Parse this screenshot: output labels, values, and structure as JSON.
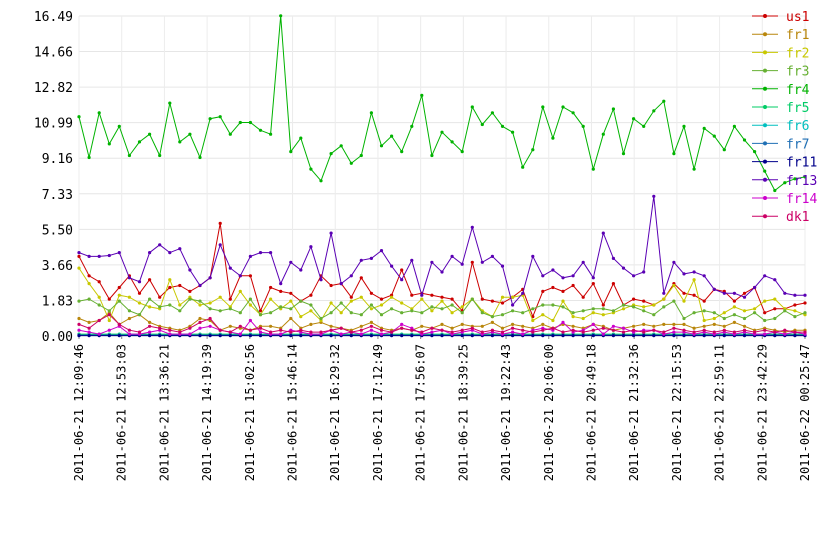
{
  "chart_data": {
    "type": "line",
    "title": "",
    "xlabel": "",
    "ylabel": "",
    "ylim": [
      0,
      16.49
    ],
    "yticks": [
      "0.00",
      "1.83",
      "3.66",
      "5.50",
      "7.33",
      "9.16",
      "10.99",
      "12.82",
      "14.66",
      "16.49"
    ],
    "xticks": [
      "2011-06-21 12:09:46",
      "2011-06-21 12:53:03",
      "2011-06-21 13:36:21",
      "2011-06-21 14:19:39",
      "2011-06-21 15:02:56",
      "2011-06-21 15:46:14",
      "2011-06-21 16:29:32",
      "2011-06-21 17:12:49",
      "2011-06-21 17:56:07",
      "2011-06-21 18:39:25",
      "2011-06-21 19:22:43",
      "2011-06-21 20:06:00",
      "2011-06-21 20:49:18",
      "2011-06-21 21:32:36",
      "2011-06-21 22:15:53",
      "2011-06-21 22:59:11",
      "2011-06-21 23:42:29",
      "2011-06-22 00:25:47"
    ],
    "legend_position": "right",
    "grid": true,
    "series": [
      {
        "name": "us1",
        "color": "#cc0000",
        "values": [
          4.1,
          3.1,
          2.8,
          1.9,
          2.5,
          3.1,
          2.2,
          2.9,
          2.0,
          2.5,
          2.6,
          2.3,
          2.6,
          3.0,
          5.8,
          1.9,
          3.1,
          3.1,
          1.3,
          2.5,
          2.3,
          2.2,
          1.8,
          2.1,
          3.1,
          2.6,
          2.7,
          2.0,
          3.0,
          2.2,
          1.9,
          2.1,
          3.4,
          2.1,
          2.2,
          2.1,
          2.0,
          1.9,
          1.3,
          3.8,
          1.9,
          1.8,
          1.7,
          2.0,
          2.4,
          1.0,
          2.3,
          2.5,
          2.3,
          2.6,
          2.0,
          2.7,
          1.6,
          2.7,
          1.6,
          1.9,
          1.8,
          1.6,
          1.9,
          2.7,
          2.2,
          2.1,
          1.8,
          2.4,
          2.3,
          1.8,
          2.2,
          2.5,
          1.2,
          1.4,
          1.4,
          1.6,
          1.7
        ]
      },
      {
        "name": "fr1",
        "color": "#b8860b",
        "values": [
          0.9,
          0.7,
          0.8,
          1.2,
          0.6,
          0.9,
          1.1,
          0.7,
          0.5,
          0.4,
          0.3,
          0.5,
          0.9,
          0.8,
          0.3,
          0.5,
          0.4,
          0.3,
          0.5,
          0.5,
          0.4,
          0.9,
          0.4,
          0.6,
          0.7,
          0.5,
          0.4,
          0.3,
          0.5,
          0.7,
          0.4,
          0.3,
          0.4,
          0.3,
          0.5,
          0.4,
          0.6,
          0.4,
          0.6,
          0.5,
          0.5,
          0.7,
          0.4,
          0.6,
          0.5,
          0.4,
          0.6,
          0.4,
          0.6,
          0.5,
          0.4,
          0.6,
          0.5,
          0.3,
          0.4,
          0.5,
          0.6,
          0.5,
          0.6,
          0.6,
          0.6,
          0.4,
          0.5,
          0.6,
          0.5,
          0.7,
          0.5,
          0.3,
          0.4,
          0.3,
          0.2,
          0.3,
          0.3
        ]
      },
      {
        "name": "fr2",
        "color": "#c8c800",
        "values": [
          3.5,
          2.7,
          2.0,
          0.8,
          2.1,
          2.0,
          1.7,
          1.5,
          1.4,
          2.9,
          1.6,
          2.0,
          1.6,
          1.7,
          2.0,
          1.5,
          2.3,
          1.6,
          1.1,
          1.9,
          1.4,
          1.8,
          1.0,
          1.3,
          0.8,
          1.7,
          1.2,
          1.8,
          2.0,
          1.4,
          1.6,
          2.0,
          1.7,
          1.4,
          1.9,
          1.3,
          1.8,
          1.2,
          1.5,
          1.9,
          1.3,
          1.0,
          2.0,
          2.0,
          2.1,
          0.8,
          1.1,
          0.8,
          1.8,
          1.0,
          0.9,
          1.2,
          1.1,
          1.2,
          1.4,
          1.6,
          1.5,
          1.6,
          1.9,
          2.6,
          1.8,
          2.9,
          0.8,
          0.9,
          1.2,
          1.5,
          1.3,
          1.4,
          1.8,
          1.9,
          1.4,
          1.3,
          1.1
        ]
      },
      {
        "name": "fr3",
        "color": "#66b032",
        "values": [
          1.8,
          1.9,
          1.6,
          1.3,
          1.8,
          1.3,
          1.1,
          1.9,
          1.5,
          1.6,
          1.3,
          1.9,
          1.8,
          1.4,
          1.3,
          1.4,
          1.2,
          1.9,
          1.1,
          1.2,
          1.5,
          1.4,
          1.8,
          1.6,
          0.9,
          1.2,
          1.7,
          1.2,
          1.1,
          1.6,
          1.1,
          1.4,
          1.2,
          1.3,
          1.2,
          1.5,
          1.4,
          1.6,
          1.2,
          1.9,
          1.2,
          1.0,
          1.1,
          1.3,
          1.2,
          1.4,
          1.6,
          1.6,
          1.5,
          1.2,
          1.3,
          1.4,
          1.4,
          1.3,
          1.6,
          1.5,
          1.3,
          1.1,
          1.5,
          1.8,
          0.9,
          1.2,
          1.3,
          1.2,
          0.9,
          1.1,
          0.9,
          1.2,
          0.8,
          0.9,
          1.3,
          1.0,
          1.2
        ]
      },
      {
        "name": "fr4",
        "color": "#00b300",
        "values": [
          11.3,
          9.2,
          11.5,
          9.9,
          10.8,
          9.3,
          10.0,
          10.4,
          9.3,
          12.0,
          10.0,
          10.4,
          9.2,
          11.2,
          11.3,
          10.4,
          11.0,
          11.0,
          10.6,
          10.4,
          16.5,
          9.5,
          10.2,
          8.6,
          8.0,
          9.4,
          9.8,
          8.9,
          9.3,
          11.5,
          9.8,
          10.3,
          9.5,
          10.8,
          12.4,
          9.3,
          10.5,
          10.0,
          9.5,
          11.8,
          10.9,
          11.5,
          10.8,
          10.5,
          8.7,
          9.6,
          11.8,
          10.2,
          11.8,
          11.5,
          10.8,
          8.6,
          10.4,
          11.7,
          9.4,
          11.2,
          10.8,
          11.6,
          12.1,
          9.4,
          10.8,
          8.6,
          10.7,
          10.3,
          9.6,
          10.8,
          10.1,
          9.5,
          8.5,
          7.5,
          7.9,
          8.1,
          8.2
        ]
      },
      {
        "name": "fr5",
        "color": "#00cc66",
        "values": [
          0.1,
          0.1,
          0.1,
          0.1,
          0.1,
          0.1,
          0.1,
          0.1,
          0.1,
          0.1,
          0.1,
          0.1,
          0.1,
          0.1,
          0.1,
          0.1,
          0.1,
          0.1,
          0.1,
          0.1,
          0.1,
          0.1,
          0.1,
          0.1,
          0.1,
          0.1,
          0.1,
          0.1,
          0.1,
          0.1,
          0.1,
          0.1,
          0.1,
          0.1,
          0.1,
          0.1,
          0.1,
          0.1,
          0.1,
          0.1,
          0.1,
          0.1,
          0.1,
          0.1,
          0.1,
          0.1,
          0.1,
          0.1,
          0.1,
          0.1,
          0.1,
          0.1,
          0.1,
          0.1,
          0.1,
          0.1,
          0.1,
          0.1,
          0.1,
          0.1,
          0.1,
          0.1,
          0.1,
          0.1,
          0.1,
          0.1,
          0.1,
          0.1,
          0.1,
          0.1,
          0.1,
          0.1,
          0.1
        ]
      },
      {
        "name": "fr6",
        "color": "#00bfbf",
        "values": [
          0.05,
          0.05,
          0.05,
          0.05,
          0.05,
          0.05,
          0.05,
          0.05,
          0.05,
          0.05,
          0.05,
          0.05,
          0.05,
          0.05,
          0.05,
          0.05,
          0.05,
          0.05,
          0.05,
          0.05,
          0.05,
          0.05,
          0.05,
          0.05,
          0.05,
          0.05,
          0.05,
          0.05,
          0.05,
          0.05,
          0.05,
          0.05,
          0.05,
          0.05,
          0.05,
          0.05,
          0.05,
          0.05,
          0.05,
          0.05,
          0.05,
          0.05,
          0.05,
          0.05,
          0.05,
          0.05,
          0.05,
          0.05,
          0.05,
          0.05,
          0.05,
          0.05,
          0.05,
          0.05,
          0.05,
          0.05,
          0.05,
          0.05,
          0.05,
          0.05,
          0.05,
          0.05,
          0.05,
          0.05,
          0.05,
          0.05,
          0.05,
          0.05,
          0.05,
          0.05,
          0.05,
          0.05,
          0.05
        ]
      },
      {
        "name": "fr7",
        "color": "#1f6fb4",
        "values": [
          0.05,
          0.05,
          0.05,
          0.05,
          0.05,
          0.05,
          0.05,
          0.05,
          0.05,
          0.05,
          0.05,
          0.05,
          0.05,
          0.05,
          0.05,
          0.05,
          0.05,
          0.05,
          0.05,
          0.05,
          0.05,
          0.05,
          0.05,
          0.05,
          0.05,
          0.05,
          0.05,
          0.05,
          0.05,
          0.05,
          0.05,
          0.05,
          0.05,
          0.05,
          0.05,
          0.05,
          0.05,
          0.05,
          0.05,
          0.05,
          0.05,
          0.05,
          0.05,
          0.05,
          0.05,
          0.05,
          0.05,
          0.05,
          0.05,
          0.05,
          0.05,
          0.05,
          0.05,
          0.05,
          0.05,
          0.05,
          0.05,
          0.05,
          0.05,
          0.05,
          0.05,
          0.05,
          0.05,
          0.05,
          0.05,
          0.05,
          0.05,
          0.05,
          0.05,
          0.05,
          0.05,
          0.05,
          0.05
        ]
      },
      {
        "name": "fr11",
        "color": "#00008b",
        "values": [
          0.02,
          0.02,
          0.02,
          0.02,
          0.02,
          0.02,
          0.02,
          0.02,
          0.02,
          0.02,
          0.02,
          0.02,
          0.02,
          0.02,
          0.02,
          0.02,
          0.02,
          0.02,
          0.02,
          0.02,
          0.02,
          0.02,
          0.02,
          0.02,
          0.02,
          0.02,
          0.02,
          0.02,
          0.02,
          0.02,
          0.02,
          0.02,
          0.02,
          0.02,
          0.02,
          0.02,
          0.02,
          0.02,
          0.02,
          0.02,
          0.02,
          0.02,
          0.02,
          0.02,
          0.02,
          0.02,
          0.02,
          0.02,
          0.02,
          0.02,
          0.02,
          0.02,
          0.02,
          0.02,
          0.02,
          0.02,
          0.02,
          0.02,
          0.02,
          0.02,
          0.02,
          0.02,
          0.02,
          0.02,
          0.02,
          0.02,
          0.02,
          0.02,
          0.02,
          0.02,
          0.02,
          0.02,
          0.02
        ]
      },
      {
        "name": "fr13",
        "color": "#5a00b4",
        "values": [
          4.3,
          4.1,
          4.1,
          4.15,
          4.3,
          3.0,
          2.8,
          4.3,
          4.7,
          4.3,
          4.5,
          3.4,
          2.6,
          3.0,
          4.7,
          3.5,
          3.1,
          4.1,
          4.3,
          4.3,
          2.7,
          3.8,
          3.4,
          4.6,
          2.9,
          5.3,
          2.7,
          3.1,
          3.9,
          4.0,
          4.4,
          3.6,
          2.9,
          3.9,
          2.1,
          3.8,
          3.3,
          4.1,
          3.7,
          5.6,
          3.8,
          4.1,
          3.6,
          1.6,
          2.2,
          4.1,
          3.1,
          3.4,
          3.0,
          3.1,
          3.8,
          3.0,
          5.3,
          4.0,
          3.5,
          3.1,
          3.3,
          7.2,
          2.2,
          3.8,
          3.2,
          3.3,
          3.1,
          2.4,
          2.2,
          2.2,
          2.0,
          2.5,
          3.1,
          2.9,
          2.2,
          2.1,
          2.1
        ]
      },
      {
        "name": "fr14",
        "color": "#cc00cc",
        "values": [
          0.3,
          0.2,
          0.1,
          0.3,
          0.5,
          0.1,
          0.1,
          0.2,
          0.3,
          0.1,
          0.1,
          0.1,
          0.4,
          0.5,
          0.3,
          0.2,
          0.1,
          0.8,
          0.2,
          0.1,
          0.1,
          0.3,
          0.2,
          0.1,
          0.1,
          0.3,
          0.1,
          0.2,
          0.1,
          0.3,
          0.1,
          0.2,
          0.6,
          0.4,
          0.1,
          0.2,
          0.3,
          0.1,
          0.2,
          0.3,
          0.1,
          0.2,
          0.1,
          0.2,
          0.1,
          0.3,
          0.4,
          0.3,
          0.7,
          0.2,
          0.3,
          0.6,
          0.1,
          0.5,
          0.4,
          0.2,
          0.3,
          0.3,
          0.1,
          0.2,
          0.2,
          0.1,
          0.2,
          0.1,
          0.2,
          0.1,
          0.2,
          0.1,
          0.1,
          0.2,
          0.1,
          0.2,
          0.1
        ]
      },
      {
        "name": "dk1",
        "color": "#cc0066",
        "values": [
          0.6,
          0.4,
          0.8,
          1.1,
          0.6,
          0.3,
          0.2,
          0.5,
          0.4,
          0.3,
          0.2,
          0.4,
          0.7,
          0.9,
          0.3,
          0.2,
          0.5,
          0.3,
          0.4,
          0.2,
          0.3,
          0.2,
          0.3,
          0.2,
          0.2,
          0.3,
          0.4,
          0.2,
          0.3,
          0.5,
          0.3,
          0.2,
          0.4,
          0.3,
          0.2,
          0.4,
          0.3,
          0.2,
          0.3,
          0.4,
          0.2,
          0.3,
          0.2,
          0.4,
          0.3,
          0.2,
          0.3,
          0.4,
          0.2,
          0.3,
          0.2,
          0.3,
          0.4,
          0.3,
          0.2,
          0.3,
          0.2,
          0.3,
          0.2,
          0.4,
          0.3,
          0.2,
          0.3,
          0.2,
          0.3,
          0.2,
          0.3,
          0.2,
          0.3,
          0.2,
          0.3,
          0.2,
          0.2
        ]
      }
    ]
  }
}
